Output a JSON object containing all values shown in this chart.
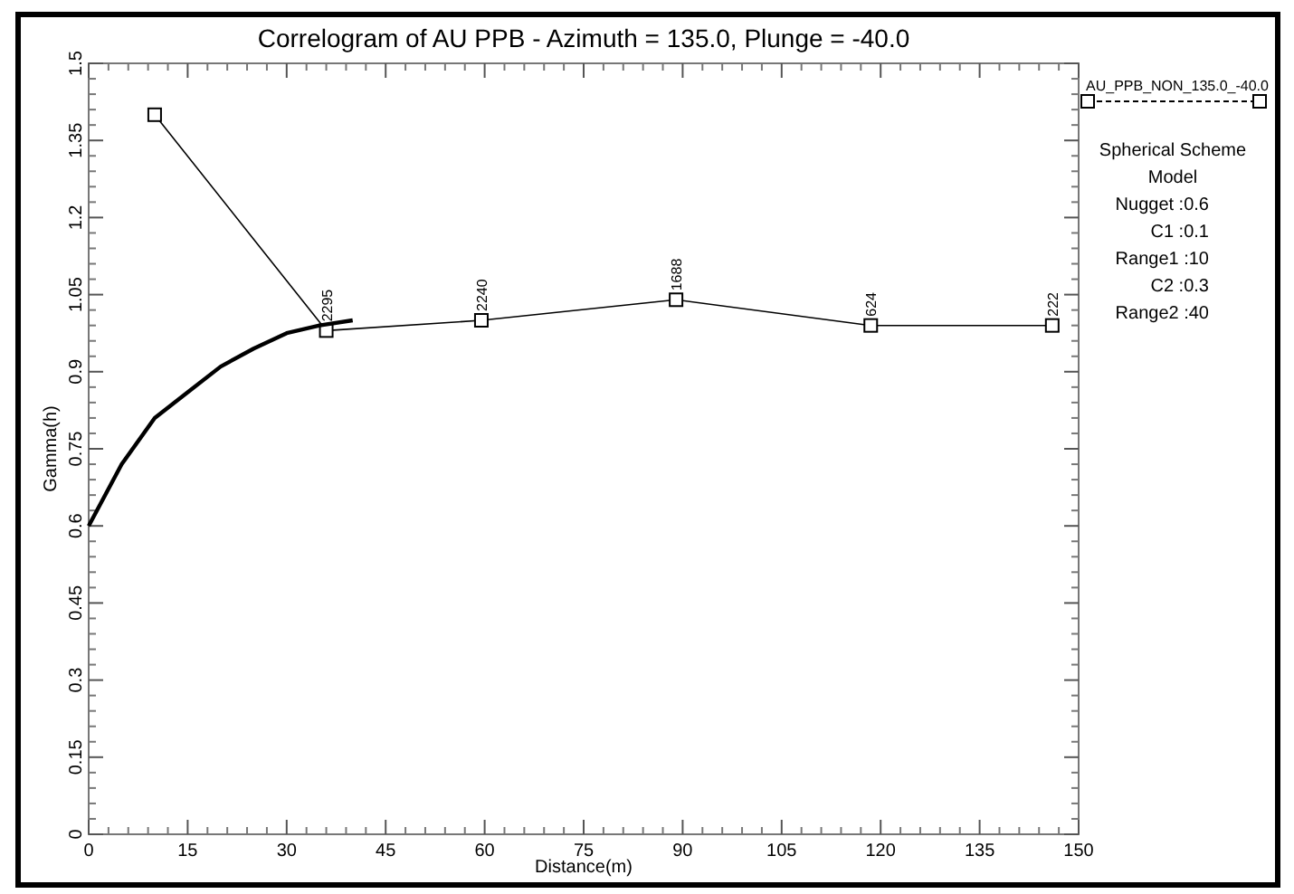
{
  "chart_data": {
    "type": "line",
    "title": "Correlogram of AU  PPB - Azimuth = 135.0, Plunge = -40.0",
    "xlabel": "Distance(m)",
    "ylabel": "Gamma(h)",
    "xlim": [
      0,
      150
    ],
    "xticks": [
      0,
      15,
      30,
      45,
      60,
      75,
      90,
      105,
      120,
      135,
      150
    ],
    "ylim": [
      0,
      1.5
    ],
    "yticks": [
      0,
      0.15,
      0.3,
      0.45,
      0.6,
      0.75,
      0.9,
      1.05,
      1.2,
      1.35,
      1.5
    ],
    "series": [
      {
        "name": "AU_PPB_NON_135.0_-40.0",
        "color": "#000000",
        "marker": "square",
        "x": [
          10,
          36,
          59.5,
          89,
          118.5,
          146
        ],
        "values": [
          1.4,
          0.98,
          1.0,
          1.04,
          0.99,
          0.99
        ]
      },
      {
        "color": "#000000",
        "marker": "none",
        "x": [
          0,
          5,
          10,
          15,
          20,
          25,
          30,
          35,
          40
        ],
        "values": [
          0.6,
          0.72,
          0.81,
          0.86,
          0.91,
          0.945,
          0.975,
          0.99,
          1.0
        ]
      }
    ],
    "legend": "top right",
    "grid": false,
    "annotations": [
      "Spherical Scheme",
      "Model",
      "Nugget :0.6",
      "C1 :0.1",
      "Range1 :10",
      "C2 :0.3",
      "Range2 :40",
      {
        "text": "2295",
        "x": 36,
        "y": 0.98
      },
      {
        "text": "2240",
        "x": 59.5,
        "y": 1.0
      },
      {
        "text": "1688",
        "x": 89,
        "y": 1.04
      },
      {
        "text": "624",
        "x": 118.5,
        "y": 0.99
      },
      {
        "text": "222",
        "x": 146,
        "y": 0.99
      }
    ]
  }
}
